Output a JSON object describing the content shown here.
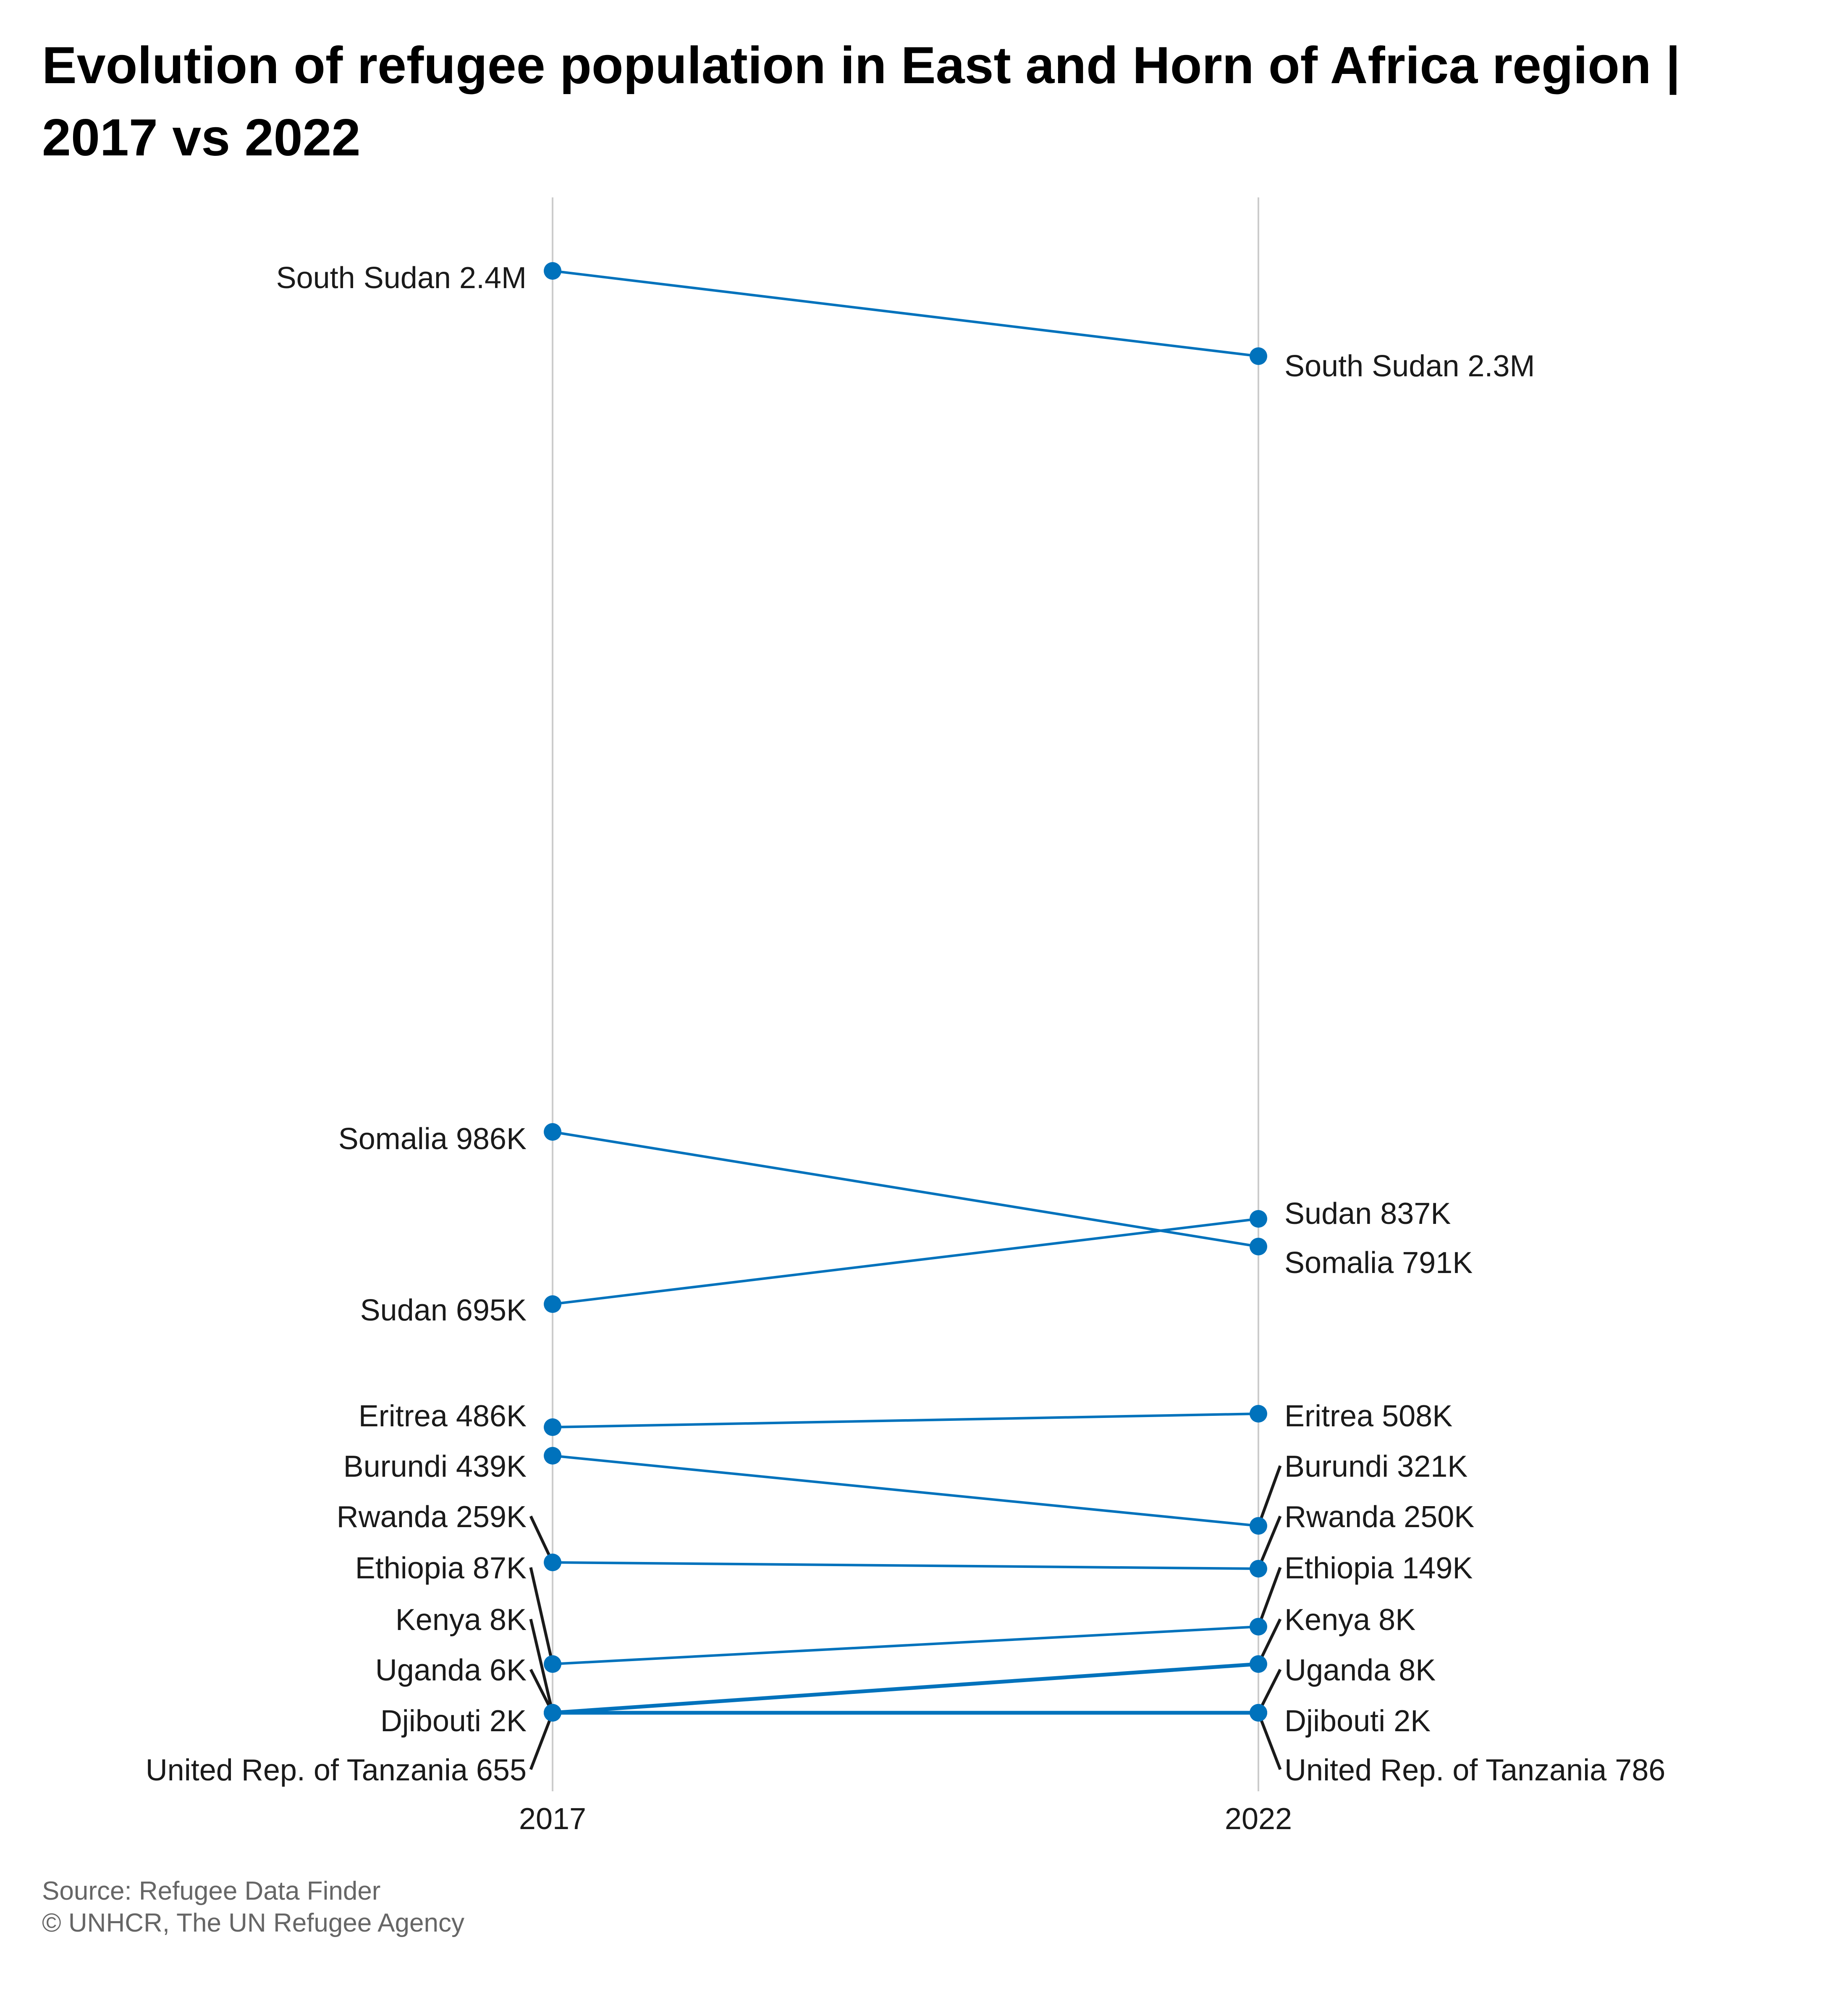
{
  "title": "Evolution of refugee population in East and Horn of Africa region | 2017 vs 2022",
  "source": {
    "line1": "Source: Refugee Data Finder",
    "line2": "© UNHCR, The UN Refugee Agency"
  },
  "colors": {
    "series": "#0072bc",
    "axis": "#cccccc",
    "leader": "#1a1a1a",
    "text": "#1a1a1a"
  },
  "chart_data": {
    "type": "line",
    "subtype": "slope",
    "x": [
      "2017",
      "2022"
    ],
    "grid": false,
    "series": [
      {
        "name": "South Sudan",
        "values": [
          2400000,
          2300000
        ],
        "labels": [
          "South Sudan 2.4M",
          "South Sudan 2.3M"
        ]
      },
      {
        "name": "Somalia",
        "values": [
          986000,
          791000
        ],
        "labels": [
          "Somalia 986K",
          "Somalia 791K"
        ]
      },
      {
        "name": "Sudan",
        "values": [
          695000,
          837000
        ],
        "labels": [
          "Sudan 695K",
          "Sudan 837K"
        ]
      },
      {
        "name": "Eritrea",
        "values": [
          486000,
          508000
        ],
        "labels": [
          "Eritrea 486K",
          "Eritrea 508K"
        ]
      },
      {
        "name": "Burundi",
        "values": [
          439000,
          321000
        ],
        "labels": [
          "Burundi 439K",
          "Burundi 321K"
        ]
      },
      {
        "name": "Rwanda",
        "values": [
          259000,
          250000
        ],
        "labels": [
          "Rwanda 259K",
          "Rwanda 250K"
        ]
      },
      {
        "name": "Ethiopia",
        "values": [
          87000,
          149000
        ],
        "labels": [
          "Ethiopia 87K",
          "Ethiopia 149K"
        ]
      },
      {
        "name": "Kenya",
        "values": [
          8000,
          8000
        ],
        "labels": [
          "Kenya 8K",
          "Kenya 8K"
        ]
      },
      {
        "name": "Uganda",
        "values": [
          6000,
          8000
        ],
        "labels": [
          "Uganda 6K",
          "Uganda 8K"
        ]
      },
      {
        "name": "Djibouti",
        "values": [
          2000,
          2000
        ],
        "labels": [
          "Djibouti 2K",
          "Djibouti 2K"
        ]
      },
      {
        "name": "United Rep. of Tanzania",
        "values": [
          655,
          786
        ],
        "labels": [
          "United Rep. of Tanzania 655",
          "United Rep. of Tanzania 786"
        ]
      }
    ]
  }
}
